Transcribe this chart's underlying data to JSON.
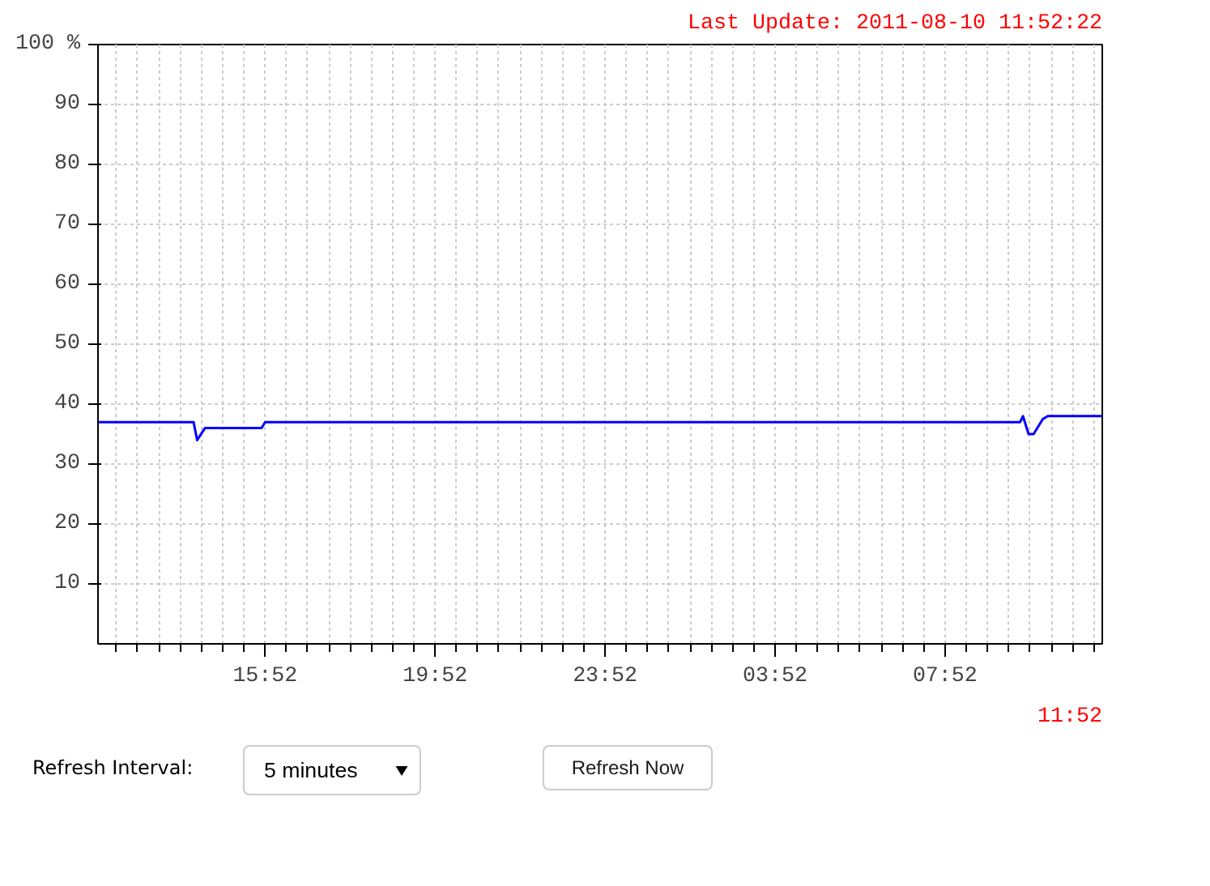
{
  "chart_data": {
    "type": "line",
    "x": [
      "2011-08-09T11:56",
      "2011-08-09T14:11",
      "2011-08-09T14:16",
      "2011-08-09T14:27",
      "2011-08-09T15:47",
      "2011-08-09T15:52",
      "2011-08-10T09:38",
      "2011-08-10T09:42",
      "2011-08-10T09:50",
      "2011-08-10T09:57",
      "2011-08-10T10:10",
      "2011-08-10T10:17",
      "2011-08-10T11:34"
    ],
    "series": [
      {
        "color": "#0000ff",
        "values": [
          37,
          37,
          34,
          36,
          36,
          37,
          37,
          38,
          35,
          35,
          37.5,
          38,
          38
        ]
      }
    ],
    "xlim": [
      "2011-08-09T11:56",
      "2011-08-10T11:34"
    ],
    "xticks": [
      {
        "value": "2011-08-09T15:52",
        "label": "15:52"
      },
      {
        "value": "2011-08-09T19:52",
        "label": "19:52"
      },
      {
        "value": "2011-08-09T23:52",
        "label": "23:52"
      },
      {
        "value": "2011-08-10T03:52",
        "label": "03:52"
      },
      {
        "value": "2011-08-10T07:52",
        "label": "07:52"
      }
    ],
    "ylim": [
      0,
      100
    ],
    "yticks": [
      10,
      20,
      30,
      40,
      50,
      60,
      70,
      80,
      90,
      {
        "value": 100,
        "label": "100 %"
      }
    ],
    "grid": true,
    "marker": "none",
    "line_style": "solid",
    "annotations": [
      "Last Update: 2011-08-10 11:52:22",
      "11:52",
      "Refresh Interval:",
      "5 minutes",
      "Refresh Now"
    ]
  }
}
